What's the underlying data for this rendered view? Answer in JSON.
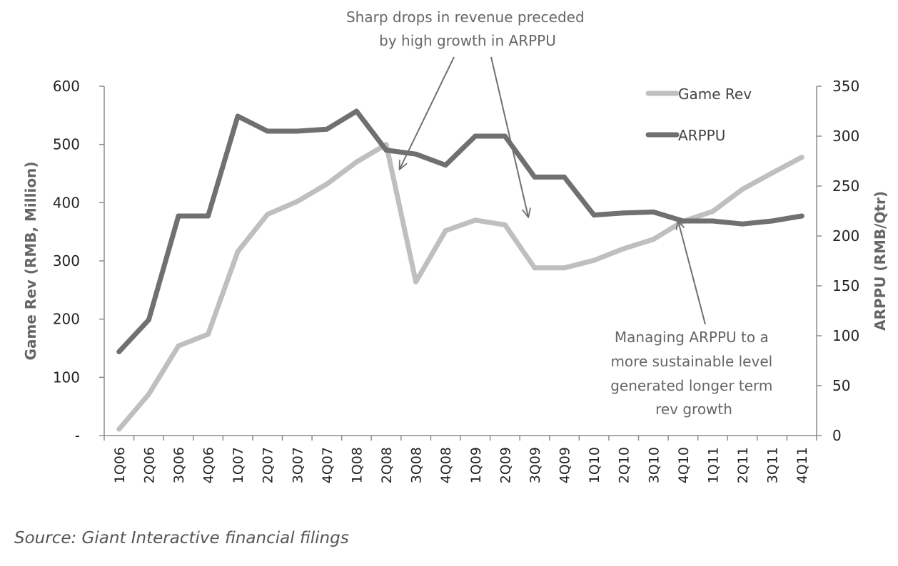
{
  "chart_data": {
    "type": "line",
    "categories": [
      "1Q06",
      "2Q06",
      "3Q06",
      "4Q06",
      "1Q07",
      "2Q07",
      "3Q07",
      "4Q07",
      "1Q08",
      "2Q08",
      "3Q08",
      "4Q08",
      "1Q09",
      "2Q09",
      "3Q09",
      "4Q09",
      "1Q10",
      "2Q10",
      "3Q10",
      "4Q10",
      "1Q11",
      "2Q11",
      "3Q11",
      "4Q11"
    ],
    "series": [
      {
        "name": "Game Rev",
        "axis": "left",
        "color": "#bfbfbf",
        "values": [
          11,
          71,
          154,
          174,
          316,
          380,
          402,
          432,
          470,
          500,
          264,
          352,
          370,
          362,
          288,
          288,
          301,
          321,
          337,
          368,
          385,
          423,
          451,
          478
        ]
      },
      {
        "name": "ARPPU",
        "axis": "right",
        "color": "#707070",
        "values": [
          84,
          116,
          220,
          220,
          320,
          305,
          305,
          307,
          325,
          286,
          282,
          271,
          300,
          300,
          259,
          259,
          221,
          223,
          224,
          215,
          215,
          212,
          215,
          220
        ]
      }
    ],
    "y_left": {
      "label": "Game Rev (RMB, Million)",
      "min": 0,
      "max": 600,
      "ticks": [
        "-",
        "100",
        "200",
        "300",
        "400",
        "500",
        "600"
      ]
    },
    "y_right": {
      "label": "ARPPU (RMB/Qtr)",
      "min": 0,
      "max": 350,
      "ticks": [
        "0",
        "50",
        "100",
        "150",
        "200",
        "250",
        "300",
        "350"
      ]
    },
    "legend": {
      "placement": "top-right"
    },
    "grid": false,
    "annotations": [
      {
        "lines": [
          "Sharp drops in revenue preceded",
          "by high growth in ARPPU"
        ]
      },
      {
        "lines": [
          "Managing ARPPU to a",
          "more sustainable  level",
          "generated longer term",
          "rev growth"
        ]
      }
    ]
  },
  "source": "Source: Giant Interactive financial filings"
}
